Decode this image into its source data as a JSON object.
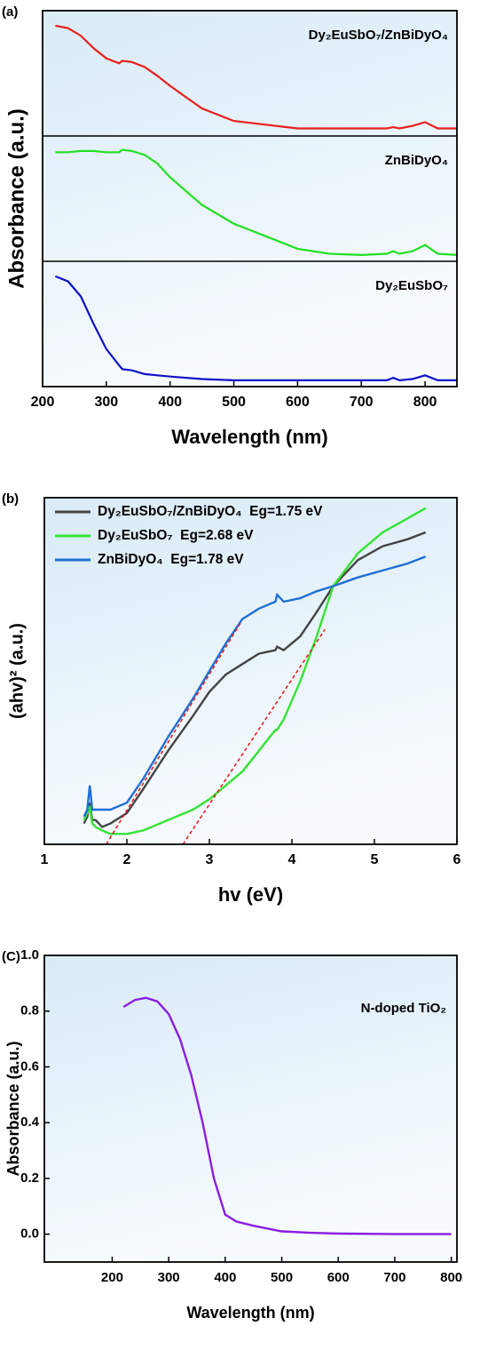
{
  "chart_data": [
    {
      "type": "line",
      "label": "(a)",
      "panels": true,
      "xlabel": "Wavelength (nm)",
      "ylabel": "Absorbance (a.u.)",
      "x": [
        220,
        240,
        260,
        280,
        300,
        320,
        325,
        340,
        360,
        380,
        400,
        450,
        500,
        550,
        600,
        650,
        700,
        740,
        750,
        760,
        780,
        800,
        820,
        850
      ],
      "xlim": [
        200,
        850
      ],
      "xticks": [
        200,
        300,
        400,
        500,
        600,
        700,
        800
      ],
      "ylim": [
        0,
        1
      ],
      "series": [
        {
          "name": "Dy₂EuSbO₇/ZnBiDyO₄",
          "color": "#e8201c",
          "values": [
            0.88,
            0.86,
            0.8,
            0.7,
            0.62,
            0.58,
            0.6,
            0.59,
            0.55,
            0.48,
            0.4,
            0.22,
            0.12,
            0.09,
            0.06,
            0.06,
            0.06,
            0.06,
            0.07,
            0.06,
            0.08,
            0.11,
            0.06,
            0.06
          ]
        },
        {
          "name": "ZnBiDyO₄",
          "color": "#22e022",
          "values": [
            0.87,
            0.87,
            0.88,
            0.88,
            0.87,
            0.87,
            0.89,
            0.88,
            0.85,
            0.78,
            0.67,
            0.45,
            0.3,
            0.2,
            0.1,
            0.06,
            0.05,
            0.06,
            0.08,
            0.06,
            0.08,
            0.13,
            0.06,
            0.05
          ]
        },
        {
          "name": "Dy₂EuSbO₇",
          "color": "#1010c8",
          "values": [
            0.88,
            0.84,
            0.72,
            0.5,
            0.3,
            0.17,
            0.14,
            0.13,
            0.1,
            0.09,
            0.08,
            0.06,
            0.05,
            0.05,
            0.05,
            0.05,
            0.05,
            0.05,
            0.07,
            0.05,
            0.06,
            0.09,
            0.05,
            0.05
          ]
        }
      ]
    },
    {
      "type": "line",
      "label": "(b)",
      "xlabel": "hv (eV)",
      "ylabel": "(ahv)² (a.u.)",
      "legend": "upper left",
      "x": [
        1.48,
        1.52,
        1.55,
        1.58,
        1.62,
        1.7,
        1.8,
        2.0,
        2.2,
        2.5,
        2.8,
        3.0,
        3.2,
        3.4,
        3.6,
        3.8,
        3.82,
        3.9,
        4.1,
        4.3,
        4.5,
        4.8,
        5.1,
        5.4,
        5.62
      ],
      "xlim": [
        1,
        6
      ],
      "xticks": [
        1,
        2,
        3,
        4,
        5,
        6
      ],
      "ylim": [
        0,
        1
      ],
      "series": [
        {
          "name": "Dy₂EuSbO₇/ZnBiDyO₄  Eg=1.75 eV",
          "color": "#444444",
          "values": [
            0.06,
            0.08,
            0.12,
            0.07,
            0.07,
            0.05,
            0.06,
            0.09,
            0.16,
            0.27,
            0.37,
            0.44,
            0.49,
            0.52,
            0.55,
            0.56,
            0.57,
            0.56,
            0.6,
            0.67,
            0.745,
            0.82,
            0.86,
            0.88,
            0.9
          ]
        },
        {
          "name": "Dy₂EuSbO₇  Eg=2.68 eV",
          "color": "#33e433",
          "values": [
            0.07,
            0.09,
            0.11,
            0.06,
            0.05,
            0.04,
            0.03,
            0.03,
            0.04,
            0.07,
            0.1,
            0.13,
            0.17,
            0.21,
            0.27,
            0.33,
            0.33,
            0.36,
            0.47,
            0.6,
            0.745,
            0.84,
            0.9,
            0.94,
            0.97
          ]
        },
        {
          "name": "ZnBiDyO₄  Eg=1.78 eV",
          "color": "#1f6fd6",
          "values": [
            0.08,
            0.1,
            0.17,
            0.1,
            0.1,
            0.1,
            0.1,
            0.12,
            0.19,
            0.31,
            0.42,
            0.5,
            0.58,
            0.65,
            0.68,
            0.7,
            0.72,
            0.7,
            0.71,
            0.73,
            0.745,
            0.77,
            0.79,
            0.81,
            0.83
          ]
        }
      ],
      "fit_color": "#e8201c",
      "fit_lines": [
        {
          "x": [
            1.75,
            3.38
          ],
          "values": [
            0,
            0.64
          ]
        },
        {
          "x": [
            2.68,
            4.4
          ],
          "values": [
            0,
            0.62
          ]
        }
      ]
    },
    {
      "type": "line",
      "label": "(C)",
      "xlabel": "Wavelength (nm)",
      "ylabel": "Absorbance (a.u.)",
      "x": [
        220,
        240,
        260,
        280,
        300,
        320,
        340,
        360,
        380,
        400,
        420,
        450,
        500,
        550,
        600,
        700,
        800
      ],
      "xlim": [
        80,
        810
      ],
      "xticks": [
        200,
        300,
        400,
        500,
        600,
        700,
        800
      ],
      "ylim": [
        -0.1,
        1.0
      ],
      "yticks": [
        {
          "value": 0,
          "label": "0.0"
        },
        {
          "value": 0.2,
          "label": "0.2"
        },
        {
          "value": 0.4,
          "label": "0.4"
        },
        {
          "value": 0.6,
          "label": "0.6"
        },
        {
          "value": 0.8,
          "label": "0.8"
        },
        {
          "value": 1,
          "label": "1.0"
        }
      ],
      "series": [
        {
          "name": "N-doped TiO₂",
          "color": "#8a1ee0",
          "values": [
            0.815,
            0.84,
            0.848,
            0.835,
            0.79,
            0.7,
            0.57,
            0.4,
            0.2,
            0.07,
            0.045,
            0.03,
            0.01,
            0.005,
            0.002,
            0,
            0
          ]
        }
      ]
    }
  ]
}
